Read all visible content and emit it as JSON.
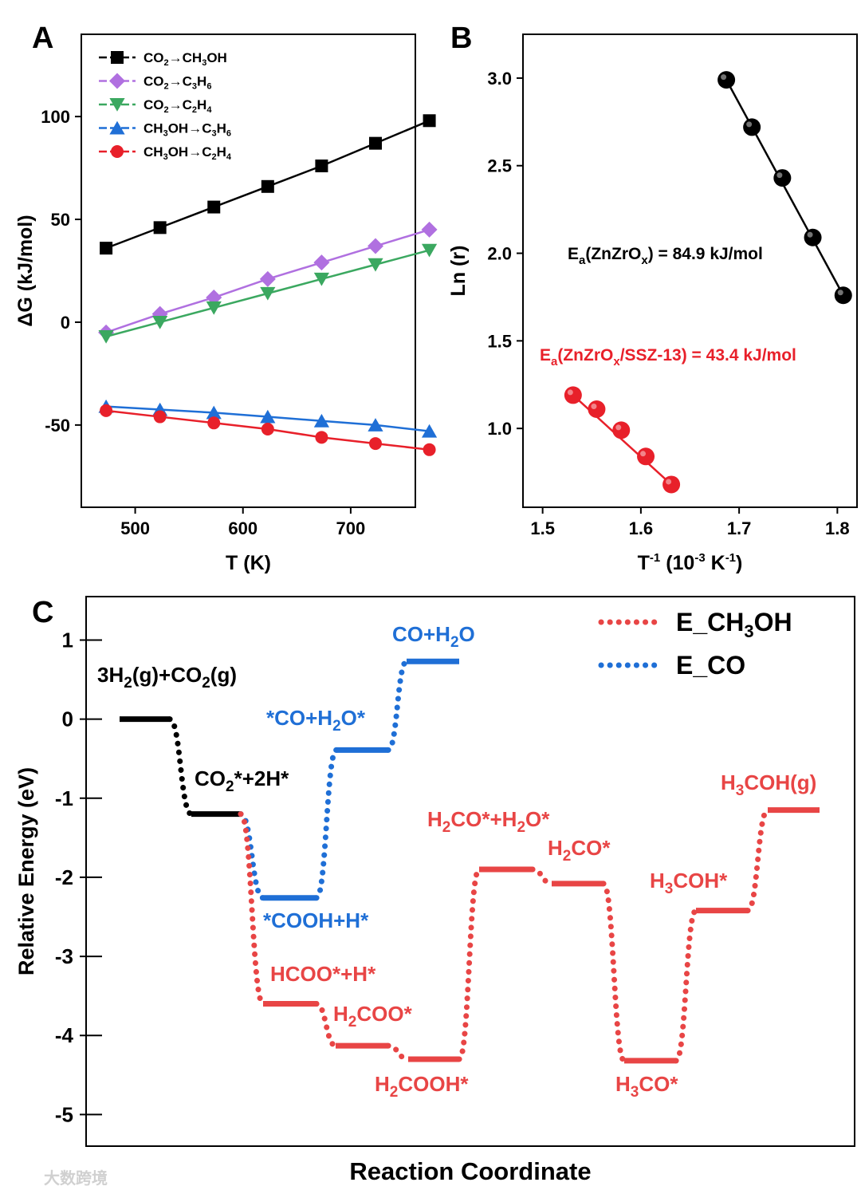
{
  "panels": {
    "a": "A",
    "b": "B",
    "c": "C"
  },
  "watermark": "大数跨境",
  "chart_data": [
    {
      "type": "line",
      "panel": "A",
      "xlabel": "T (K)",
      "ylabel": "ΔG (kJ/mol)",
      "xlim": [
        450,
        760
      ],
      "ylim": [
        -90,
        140
      ],
      "xticks": [
        500,
        600,
        700
      ],
      "yticks": [
        -50,
        0,
        50,
        100
      ],
      "legend_position": "top-left",
      "x": [
        473,
        523,
        573,
        623,
        673,
        723,
        773
      ],
      "series": [
        {
          "name": "CO₂→CH₃OH",
          "sub_html": "CO<tspan font-size='11' dy='4'>2</tspan><tspan dy='-4'>→CH</tspan><tspan font-size='11' dy='4'>3</tspan><tspan dy='-4'>OH</tspan>",
          "color": "#000000",
          "marker": "square",
          "values": [
            36,
            46,
            56,
            66,
            76,
            87,
            98
          ]
        },
        {
          "name": "CO₂→C₃H₆",
          "sub_html": "CO<tspan font-size='11' dy='4'>2</tspan><tspan dy='-4'>→C</tspan><tspan font-size='11' dy='4'>3</tspan><tspan dy='-4'>H</tspan><tspan font-size='11' dy='4'>6</tspan>",
          "color": "#b070e0",
          "marker": "diamond",
          "values": [
            -5,
            4,
            12,
            21,
            29,
            37,
            45
          ]
        },
        {
          "name": "CO₂→C₂H₄",
          "sub_html": "CO<tspan font-size='11' dy='4'>2</tspan><tspan dy='-4'>→C</tspan><tspan font-size='11' dy='4'>2</tspan><tspan dy='-4'>H</tspan><tspan font-size='11' dy='4'>4</tspan>",
          "color": "#3ba860",
          "marker": "triangle-down",
          "values": [
            -7,
            0,
            7,
            14,
            21,
            28,
            35
          ]
        },
        {
          "name": "CH₃OH→C₃H₆",
          "sub_html": "CH<tspan font-size='11' dy='4'>3</tspan><tspan dy='-4'>OH→C</tspan><tspan font-size='11' dy='4'>3</tspan><tspan dy='-4'>H</tspan><tspan font-size='11' dy='4'>6</tspan>",
          "color": "#1f6fd6",
          "marker": "triangle-up",
          "values": [
            -41,
            -42.5,
            -44,
            -46,
            -48,
            -50,
            -53
          ]
        },
        {
          "name": "CH₃OH→C₂H₄",
          "sub_html": "CH<tspan font-size='11' dy='4'>3</tspan><tspan dy='-4'>OH→C</tspan><tspan font-size='11' dy='4'>2</tspan><tspan dy='-4'>H</tspan><tspan font-size='11' dy='4'>4</tspan>",
          "color": "#e8202a",
          "marker": "circle",
          "values": [
            -43,
            -46,
            -49,
            -52,
            -56,
            -59,
            -62
          ]
        }
      ]
    },
    {
      "type": "scatter",
      "panel": "B",
      "xlabel": "T⁻¹ (10⁻³ K⁻¹)",
      "ylabel": "Ln (r)",
      "xlim": [
        1.48,
        1.82
      ],
      "ylim": [
        0.55,
        3.25
      ],
      "xticks": [
        1.5,
        1.6,
        1.7,
        1.8
      ],
      "yticks": [
        1.0,
        1.5,
        2.0,
        2.5,
        3.0
      ],
      "series": [
        {
          "name": "ZnZrOx",
          "color": "#000000",
          "x": [
            1.687,
            1.713,
            1.744,
            1.775,
            1.806
          ],
          "y": [
            2.99,
            2.72,
            2.43,
            2.09,
            1.76
          ],
          "annotation": "Ea(ZnZrOx) = 84.9 kJ/mol",
          "annotation_html": "E<tspan font-size='15' dy='6'>a</tspan><tspan dy='-6'>(ZnZrO</tspan><tspan font-size='15' dy='6'>x</tspan><tspan dy='-6'>) = 84.9 kJ/mol</tspan>"
        },
        {
          "name": "ZnZrOx/SSZ-13",
          "color": "#e8202a",
          "x": [
            1.531,
            1.555,
            1.58,
            1.605,
            1.631
          ],
          "y": [
            1.19,
            1.11,
            0.99,
            0.84,
            0.68
          ],
          "annotation": "Ea(ZnZrOx/SSZ-13) = 43.4 kJ/mol",
          "annotation_html": "E<tspan font-size='15' dy='6'>a</tspan><tspan dy='-6'>(ZnZrO</tspan><tspan font-size='15' dy='6'>x</tspan><tspan dy='-6'>/SSZ-13) = 43.4 kJ/mol</tspan>"
        }
      ]
    },
    {
      "type": "line",
      "panel": "C",
      "xlabel": "Reaction Coordinate",
      "ylabel": "Relative Energy (eV)",
      "ylim": [
        -5.4,
        1.55
      ],
      "yticks": [
        -5,
        -4,
        -3,
        -2,
        -1,
        0,
        1
      ],
      "legend_position": "top-right",
      "legend": [
        {
          "name": "E_CH₃OH",
          "html": "E_CH<tspan font-size='22' dy='8'>3</tspan><tspan dy='-8'>OH</tspan>",
          "color": "#e84545"
        },
        {
          "name": "E_CO",
          "html": "E_CO",
          "color": "#1f6fd6"
        }
      ],
      "shared_path": {
        "color": "#000000",
        "states": [
          {
            "label": "3H₂(g)+CO₂(g)",
            "html": "3H<tspan font-size='19' dy='7'>2</tspan><tspan dy='-7'>(g)+CO</tspan><tspan font-size='19' dy='7'>2</tspan><tspan dy='-7'>(g)</tspan>",
            "energy": 0.0
          },
          {
            "label": "CO₂*+2H*",
            "html": "CO<tspan font-size='19' dy='7'>2</tspan><tspan dy='-7'>*+2H*</tspan>",
            "energy": -1.2
          }
        ]
      },
      "series": [
        {
          "name": "E_CO",
          "color": "#1f6fd6",
          "states": [
            {
              "label": "*COOH+H*",
              "html": "*COOH+H*",
              "energy": -2.26
            },
            {
              "label": "*CO+H₂O*",
              "html": "*CO+H<tspan font-size='19' dy='7'>2</tspan><tspan dy='-7'>O*</tspan>",
              "energy": -0.39
            },
            {
              "label": "CO+H₂O",
              "html": "CO+H<tspan font-size='19' dy='7'>2</tspan><tspan dy='-7'>O</tspan>",
              "energy": 0.73
            }
          ]
        },
        {
          "name": "E_CH₃OH",
          "color": "#e84545",
          "states": [
            {
              "label": "HCOO*+H*",
              "html": "HCOO*+H*",
              "energy": -3.6
            },
            {
              "label": "H₂COO*",
              "html": "H<tspan font-size='19' dy='7'>2</tspan><tspan dy='-7'>COO*</tspan>",
              "energy": -4.13
            },
            {
              "label": "H₂COOH*",
              "html": "H<tspan font-size='19' dy='7'>2</tspan><tspan dy='-7'>COOH*</tspan>",
              "energy": -4.3
            },
            {
              "label": "H₂CO*+H₂O*",
              "html": "H<tspan font-size='19' dy='7'>2</tspan><tspan dy='-7'>CO*+H</tspan><tspan font-size='19' dy='7'>2</tspan><tspan dy='-7'>O*</tspan>",
              "energy": -1.9
            },
            {
              "label": "H₂CO*",
              "html": "H<tspan font-size='19' dy='7'>2</tspan><tspan dy='-7'>CO*</tspan>",
              "energy": -2.08
            },
            {
              "label": "H₃CO*",
              "html": "H<tspan font-size='19' dy='7'>3</tspan><tspan dy='-7'>CO*</tspan>",
              "energy": -4.32
            },
            {
              "label": "H₃COH*",
              "html": "H<tspan font-size='19' dy='7'>3</tspan><tspan dy='-7'>COH*</tspan>",
              "energy": -2.42
            },
            {
              "label": "H₃COH(g)",
              "html": "H<tspan font-size='19' dy='7'>3</tspan><tspan dy='-7'>COH(g)</tspan>",
              "energy": -1.15
            }
          ]
        }
      ]
    }
  ]
}
